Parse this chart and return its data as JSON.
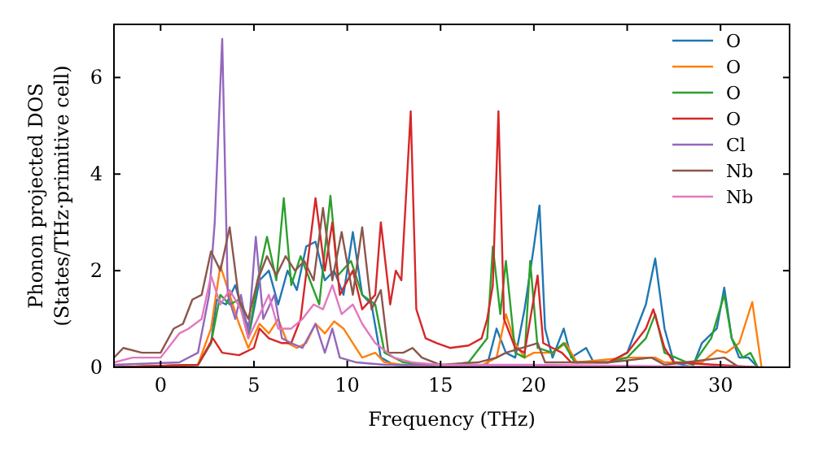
{
  "chart_data": {
    "type": "line",
    "xlabel": "Frequency (THz)",
    "ylabel": "Phonon projected DOS\n(States/THz·primitive cell)",
    "xlim": [
      -2.5,
      33.7
    ],
    "ylim": [
      0,
      7.1
    ],
    "xticks": [
      0,
      5,
      10,
      15,
      20,
      25,
      30
    ],
    "yticks": [
      0,
      2,
      4,
      6
    ],
    "grid": false,
    "legend": "top right",
    "marker": "none",
    "line_style": "solid",
    "series": [
      {
        "name": "O",
        "color": "#1f77b4",
        "x": [
          -2.5,
          2,
          2.7,
          3,
          3.5,
          4,
          4.5,
          4.8,
          5.3,
          5.8,
          6.3,
          6.8,
          7.3,
          7.8,
          8.3,
          8.8,
          9.3,
          9.8,
          10.3,
          10.8,
          11.3,
          11.8,
          12.5,
          15,
          17.5,
          18,
          18.5,
          19,
          19.5,
          20,
          20.3,
          20.6,
          21,
          21.6,
          22,
          22.8,
          23.2,
          24,
          25,
          25.5,
          26,
          26.5,
          27,
          27.5,
          28.5,
          29,
          29.8,
          30.2,
          30.6,
          31,
          31.5,
          32
        ],
        "values": [
          0,
          0.05,
          0.5,
          1.4,
          1.3,
          1.7,
          1,
          0.8,
          1.8,
          2,
          1.3,
          2,
          1.6,
          2.5,
          2.6,
          1.8,
          2,
          1.5,
          2.8,
          1.5,
          1.3,
          0.2,
          0.05,
          0,
          0.05,
          0.8,
          0.3,
          0.2,
          1.2,
          2.5,
          3.35,
          0.8,
          0.2,
          0.8,
          0.2,
          0.4,
          0.1,
          0.1,
          0.3,
          0.8,
          1.3,
          2.25,
          0.8,
          0.1,
          0,
          0.5,
          0.8,
          1.65,
          0.6,
          0.2,
          0.2,
          0
        ]
      },
      {
        "name": "O",
        "color": "#ff7f0e",
        "x": [
          -2.5,
          2,
          2.7,
          3.2,
          3.7,
          4.2,
          4.7,
          5.3,
          5.8,
          6.3,
          6.8,
          7.3,
          7.8,
          8.3,
          8.8,
          9.3,
          9.8,
          10.3,
          10.8,
          11.5,
          12,
          13,
          17,
          18,
          18.5,
          19,
          19.5,
          20,
          21,
          21.7,
          22.3,
          25,
          26.5,
          27,
          29,
          29.8,
          30.3,
          31,
          31.7,
          32.2
        ],
        "values": [
          0,
          0.05,
          0.8,
          2.1,
          1.5,
          0.9,
          0.4,
          0.9,
          0.7,
          1,
          0.5,
          0.4,
          0.5,
          0.9,
          0.7,
          0.95,
          0.8,
          0.5,
          0.2,
          0.3,
          0.1,
          0.05,
          0,
          0.2,
          1.1,
          0.5,
          0.2,
          0.3,
          0.3,
          0.5,
          0.1,
          0.2,
          0.2,
          0.1,
          0.1,
          0.35,
          0.3,
          0.5,
          1.35,
          0
        ]
      },
      {
        "name": "O",
        "color": "#2ca02c",
        "x": [
          -2.5,
          2,
          2.7,
          3.2,
          3.7,
          4.2,
          4.7,
          5.2,
          5.7,
          6.2,
          6.6,
          7,
          7.5,
          8,
          8.5,
          9.1,
          9.5,
          10.2,
          10.8,
          11.5,
          12,
          13,
          15,
          16.5,
          17.5,
          17.8,
          18.2,
          18.5,
          19,
          19.5,
          19.8,
          20.2,
          21,
          21.6,
          22.2,
          24,
          25,
          26,
          26.5,
          27,
          28.5,
          29.5,
          30.2,
          30.6,
          31.2,
          31.6,
          32
        ],
        "values": [
          0,
          0.05,
          0.5,
          1.5,
          1.3,
          1.4,
          0.6,
          1.8,
          2.7,
          1.8,
          3.5,
          1.7,
          2.3,
          1.8,
          1.3,
          3.55,
          1.9,
          2.2,
          1.5,
          1.3,
          0.3,
          0.1,
          0.02,
          0.1,
          0.6,
          2.5,
          1.1,
          2.2,
          0.3,
          0.2,
          2.2,
          0.4,
          0.3,
          0.5,
          0.1,
          0.1,
          0.2,
          0.6,
          1.1,
          0.3,
          0.05,
          0.6,
          1.5,
          0.6,
          0.2,
          0.3,
          0
        ]
      },
      {
        "name": "O",
        "color": "#d62728",
        "x": [
          -2.5,
          2,
          2.8,
          3.3,
          4.2,
          5,
          5.3,
          5.8,
          6.5,
          7,
          7.5,
          8.3,
          8.8,
          9.2,
          9.6,
          10.3,
          10.8,
          11.5,
          11.8,
          12.3,
          12.6,
          12.9,
          13.4,
          13.7,
          14.2,
          14.8,
          15.5,
          16.5,
          17.2,
          17.5,
          17.8,
          18.1,
          18.4,
          19,
          19.5,
          20.2,
          20.5,
          21,
          21.5,
          22,
          24,
          25,
          26,
          26.4,
          27,
          27.5,
          32
        ],
        "values": [
          0,
          0.05,
          0.6,
          0.3,
          0.25,
          0.4,
          0.8,
          0.6,
          0.5,
          0.5,
          1,
          3.5,
          2,
          3,
          1.5,
          2,
          1.2,
          1.5,
          3,
          1.3,
          2,
          1.8,
          5.3,
          1.2,
          0.6,
          0.5,
          0.4,
          0.45,
          0.6,
          1,
          1.7,
          5.3,
          1,
          0.4,
          0.3,
          1.9,
          0.5,
          0.4,
          0.3,
          0.1,
          0.1,
          0.3,
          0.8,
          1.2,
          0.4,
          0.1,
          0
        ]
      },
      {
        "name": "Cl",
        "color": "#9467bd",
        "x": [
          -2.5,
          1,
          2,
          2.6,
          2.9,
          3.3,
          3.6,
          4,
          4.3,
          4.7,
          5.1,
          5.5,
          6.1,
          6.5,
          7,
          7.6,
          8.3,
          8.8,
          9.2,
          9.6,
          10.5,
          12,
          32
        ],
        "values": [
          0.05,
          0.1,
          0.3,
          1.5,
          3,
          6.8,
          1.5,
          1,
          1.5,
          0.7,
          2.7,
          1,
          1.5,
          0.6,
          0.5,
          0.4,
          0.9,
          0.3,
          0.8,
          0.2,
          0.1,
          0.05,
          0
        ]
      },
      {
        "name": "Nb",
        "color": "#8c564b",
        "x": [
          -2.5,
          -2,
          -1,
          0,
          0.7,
          1.2,
          1.7,
          2.2,
          2.7,
          3.2,
          3.7,
          4.2,
          4.7,
          5.2,
          5.7,
          6.2,
          6.7,
          7.2,
          7.7,
          8.2,
          8.7,
          9.2,
          9.7,
          10.3,
          10.8,
          11.3,
          11.8,
          12.2,
          13,
          13.5,
          14,
          15,
          17,
          18,
          18.5,
          20.2,
          20.6,
          24,
          26.3,
          27,
          30.2,
          31,
          32
        ],
        "values": [
          0.2,
          0.4,
          0.3,
          0.3,
          0.8,
          0.9,
          1.4,
          1.5,
          2.4,
          2,
          2.9,
          1.4,
          1,
          1.8,
          2.3,
          1.9,
          2.3,
          2,
          2.2,
          1.8,
          3.3,
          1.8,
          2.8,
          1.5,
          2.9,
          1.2,
          1.6,
          0.3,
          0.3,
          0.4,
          0.2,
          0.05,
          0.1,
          0.2,
          0.3,
          0.5,
          0.1,
          0.1,
          0.2,
          0.05,
          0.2,
          0,
          0
        ]
      },
      {
        "name": "Nb",
        "color": "#e377c2",
        "x": [
          -2.5,
          -1.5,
          0,
          1,
          1.5,
          2.2,
          2.7,
          3.2,
          3.7,
          4.3,
          4.7,
          5.2,
          5.8,
          6.3,
          7,
          7.6,
          8.2,
          8.7,
          9.2,
          9.7,
          10.3,
          10.8,
          11.5,
          12.5,
          13.5,
          15,
          20,
          32
        ],
        "values": [
          0.1,
          0.2,
          0.2,
          0.7,
          0.8,
          1,
          1.9,
          1.3,
          1.6,
          1.2,
          0.6,
          1,
          1.5,
          0.8,
          0.8,
          1,
          1.3,
          1.2,
          1.7,
          1.1,
          1.3,
          0.9,
          0.5,
          0.2,
          0.1,
          0.05,
          0.05,
          0
        ]
      }
    ]
  }
}
